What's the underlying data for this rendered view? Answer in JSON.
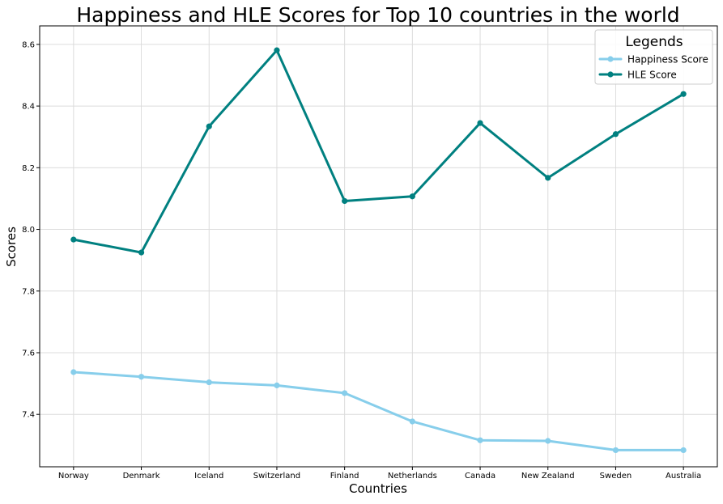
{
  "chart_data": {
    "type": "line",
    "title": "Happiness and HLE Scores for Top 10 countries in the world",
    "xlabel": "Countries",
    "ylabel": "Scores",
    "categories": [
      "Norway",
      "Denmark",
      "Iceland",
      "Switzerland",
      "Finland",
      "Netherlands",
      "Canada",
      "New Zealand",
      "Sweden",
      "Australia"
    ],
    "ylim": [
      7.23,
      8.66
    ],
    "yticks": [
      "7.4",
      "7.6",
      "7.8",
      "8.0",
      "8.2",
      "8.4",
      "8.6"
    ],
    "grid": true,
    "legend": {
      "title": "Legends",
      "position": "top-right"
    },
    "series": [
      {
        "name": "Happiness Score",
        "color": "#87ceeb",
        "values": [
          7.537,
          7.522,
          7.504,
          7.494,
          7.469,
          7.377,
          7.316,
          7.314,
          7.284,
          7.284
        ]
      },
      {
        "name": "HLE Score",
        "color": "#008080",
        "values": [
          7.967,
          7.925,
          8.334,
          8.581,
          8.092,
          8.107,
          8.345,
          8.167,
          8.309,
          8.439
        ]
      }
    ]
  }
}
